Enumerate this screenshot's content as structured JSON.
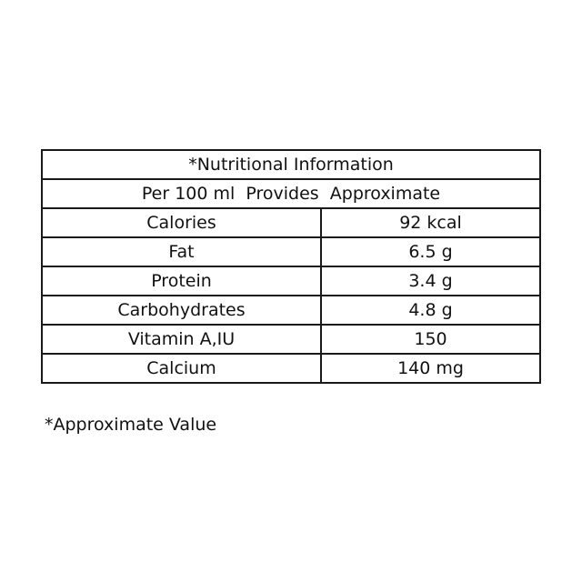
{
  "table": {
    "title": "*Nutritional Information",
    "subtitle": "Per 100 ml  Provides  Approximate",
    "rows": [
      {
        "nutrient": "Calories",
        "value": "92 kcal"
      },
      {
        "nutrient": "Fat",
        "value": "6.5 g"
      },
      {
        "nutrient": "Protein",
        "value": "3.4 g"
      },
      {
        "nutrient": "Carbohydrates",
        "value": "4.8 g"
      },
      {
        "nutrient": "Vitamin A,IU",
        "value": "150"
      },
      {
        "nutrient": "Calcium",
        "value": "140 mg"
      }
    ]
  },
  "footnote": "*Approximate Value"
}
